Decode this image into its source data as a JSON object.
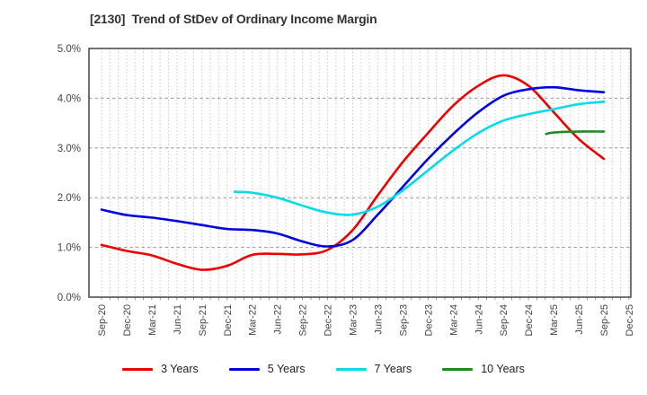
{
  "header": {
    "title": "[2130]  Trend of StDev of Ordinary Income Margin"
  },
  "chart_data": {
    "type": "line",
    "title": "[2130]  Trend of StDev of Ordinary Income Margin",
    "xlabel": "",
    "ylabel": "",
    "ylim": [
      0,
      5
    ],
    "y_tick_labels": [
      "0.0%",
      "1.0%",
      "2.0%",
      "3.0%",
      "4.0%",
      "5.0%"
    ],
    "x_categories": [
      "Sep-20",
      "Dec-20",
      "Mar-21",
      "Jun-21",
      "Sep-21",
      "Dec-21",
      "Mar-22",
      "Jun-22",
      "Sep-22",
      "Dec-22",
      "Mar-23",
      "Jun-23",
      "Sep-23",
      "Dec-23",
      "Mar-24",
      "Jun-24",
      "Sep-24",
      "Dec-24",
      "Mar-25",
      "Jun-25",
      "Sep-25",
      "Dec-25"
    ],
    "grid": {
      "horizontal": "dashed at each 1%",
      "vertical": "dotted monthly"
    },
    "legend_position": "bottom",
    "unit": "percent",
    "series": [
      {
        "name": "3 Years",
        "color": "#ee0000",
        "points": [
          [
            0,
            1.05
          ],
          [
            1,
            0.93
          ],
          [
            2,
            0.84
          ],
          [
            3,
            0.67
          ],
          [
            4,
            0.55
          ],
          [
            5,
            0.63
          ],
          [
            6,
            0.85
          ],
          [
            7,
            0.87
          ],
          [
            8,
            0.86
          ],
          [
            9,
            0.95
          ],
          [
            10,
            1.35
          ],
          [
            11,
            2.05
          ],
          [
            12,
            2.72
          ],
          [
            13,
            3.3
          ],
          [
            14,
            3.85
          ],
          [
            15,
            4.25
          ],
          [
            16,
            4.46
          ],
          [
            17,
            4.25
          ],
          [
            18,
            3.72
          ],
          [
            19,
            3.18
          ],
          [
            20,
            2.78
          ]
        ]
      },
      {
        "name": "5 Years",
        "color": "#0000e0",
        "points": [
          [
            0,
            1.76
          ],
          [
            1,
            1.65
          ],
          [
            2,
            1.6
          ],
          [
            3,
            1.53
          ],
          [
            4,
            1.45
          ],
          [
            5,
            1.37
          ],
          [
            6,
            1.35
          ],
          [
            7,
            1.28
          ],
          [
            8,
            1.12
          ],
          [
            9,
            1.02
          ],
          [
            10,
            1.15
          ],
          [
            11,
            1.66
          ],
          [
            12,
            2.22
          ],
          [
            13,
            2.78
          ],
          [
            14,
            3.28
          ],
          [
            15,
            3.72
          ],
          [
            16,
            4.05
          ],
          [
            17,
            4.18
          ],
          [
            18,
            4.22
          ],
          [
            19,
            4.16
          ],
          [
            20,
            4.12
          ]
        ]
      },
      {
        "name": "7 Years",
        "color": "#00dde8",
        "points": [
          [
            5.3,
            2.12
          ],
          [
            6,
            2.1
          ],
          [
            7,
            2.0
          ],
          [
            8,
            1.84
          ],
          [
            9,
            1.7
          ],
          [
            10,
            1.66
          ],
          [
            11,
            1.82
          ],
          [
            12,
            2.15
          ],
          [
            13,
            2.55
          ],
          [
            14,
            2.95
          ],
          [
            15,
            3.3
          ],
          [
            16,
            3.55
          ],
          [
            17,
            3.68
          ],
          [
            18,
            3.78
          ],
          [
            19,
            3.88
          ],
          [
            20,
            3.93
          ]
        ]
      },
      {
        "name": "10 Years",
        "color": "#1f8a1f",
        "points": [
          [
            17.7,
            3.28
          ],
          [
            18,
            3.31
          ],
          [
            19,
            3.33
          ],
          [
            20,
            3.33
          ]
        ]
      }
    ]
  }
}
